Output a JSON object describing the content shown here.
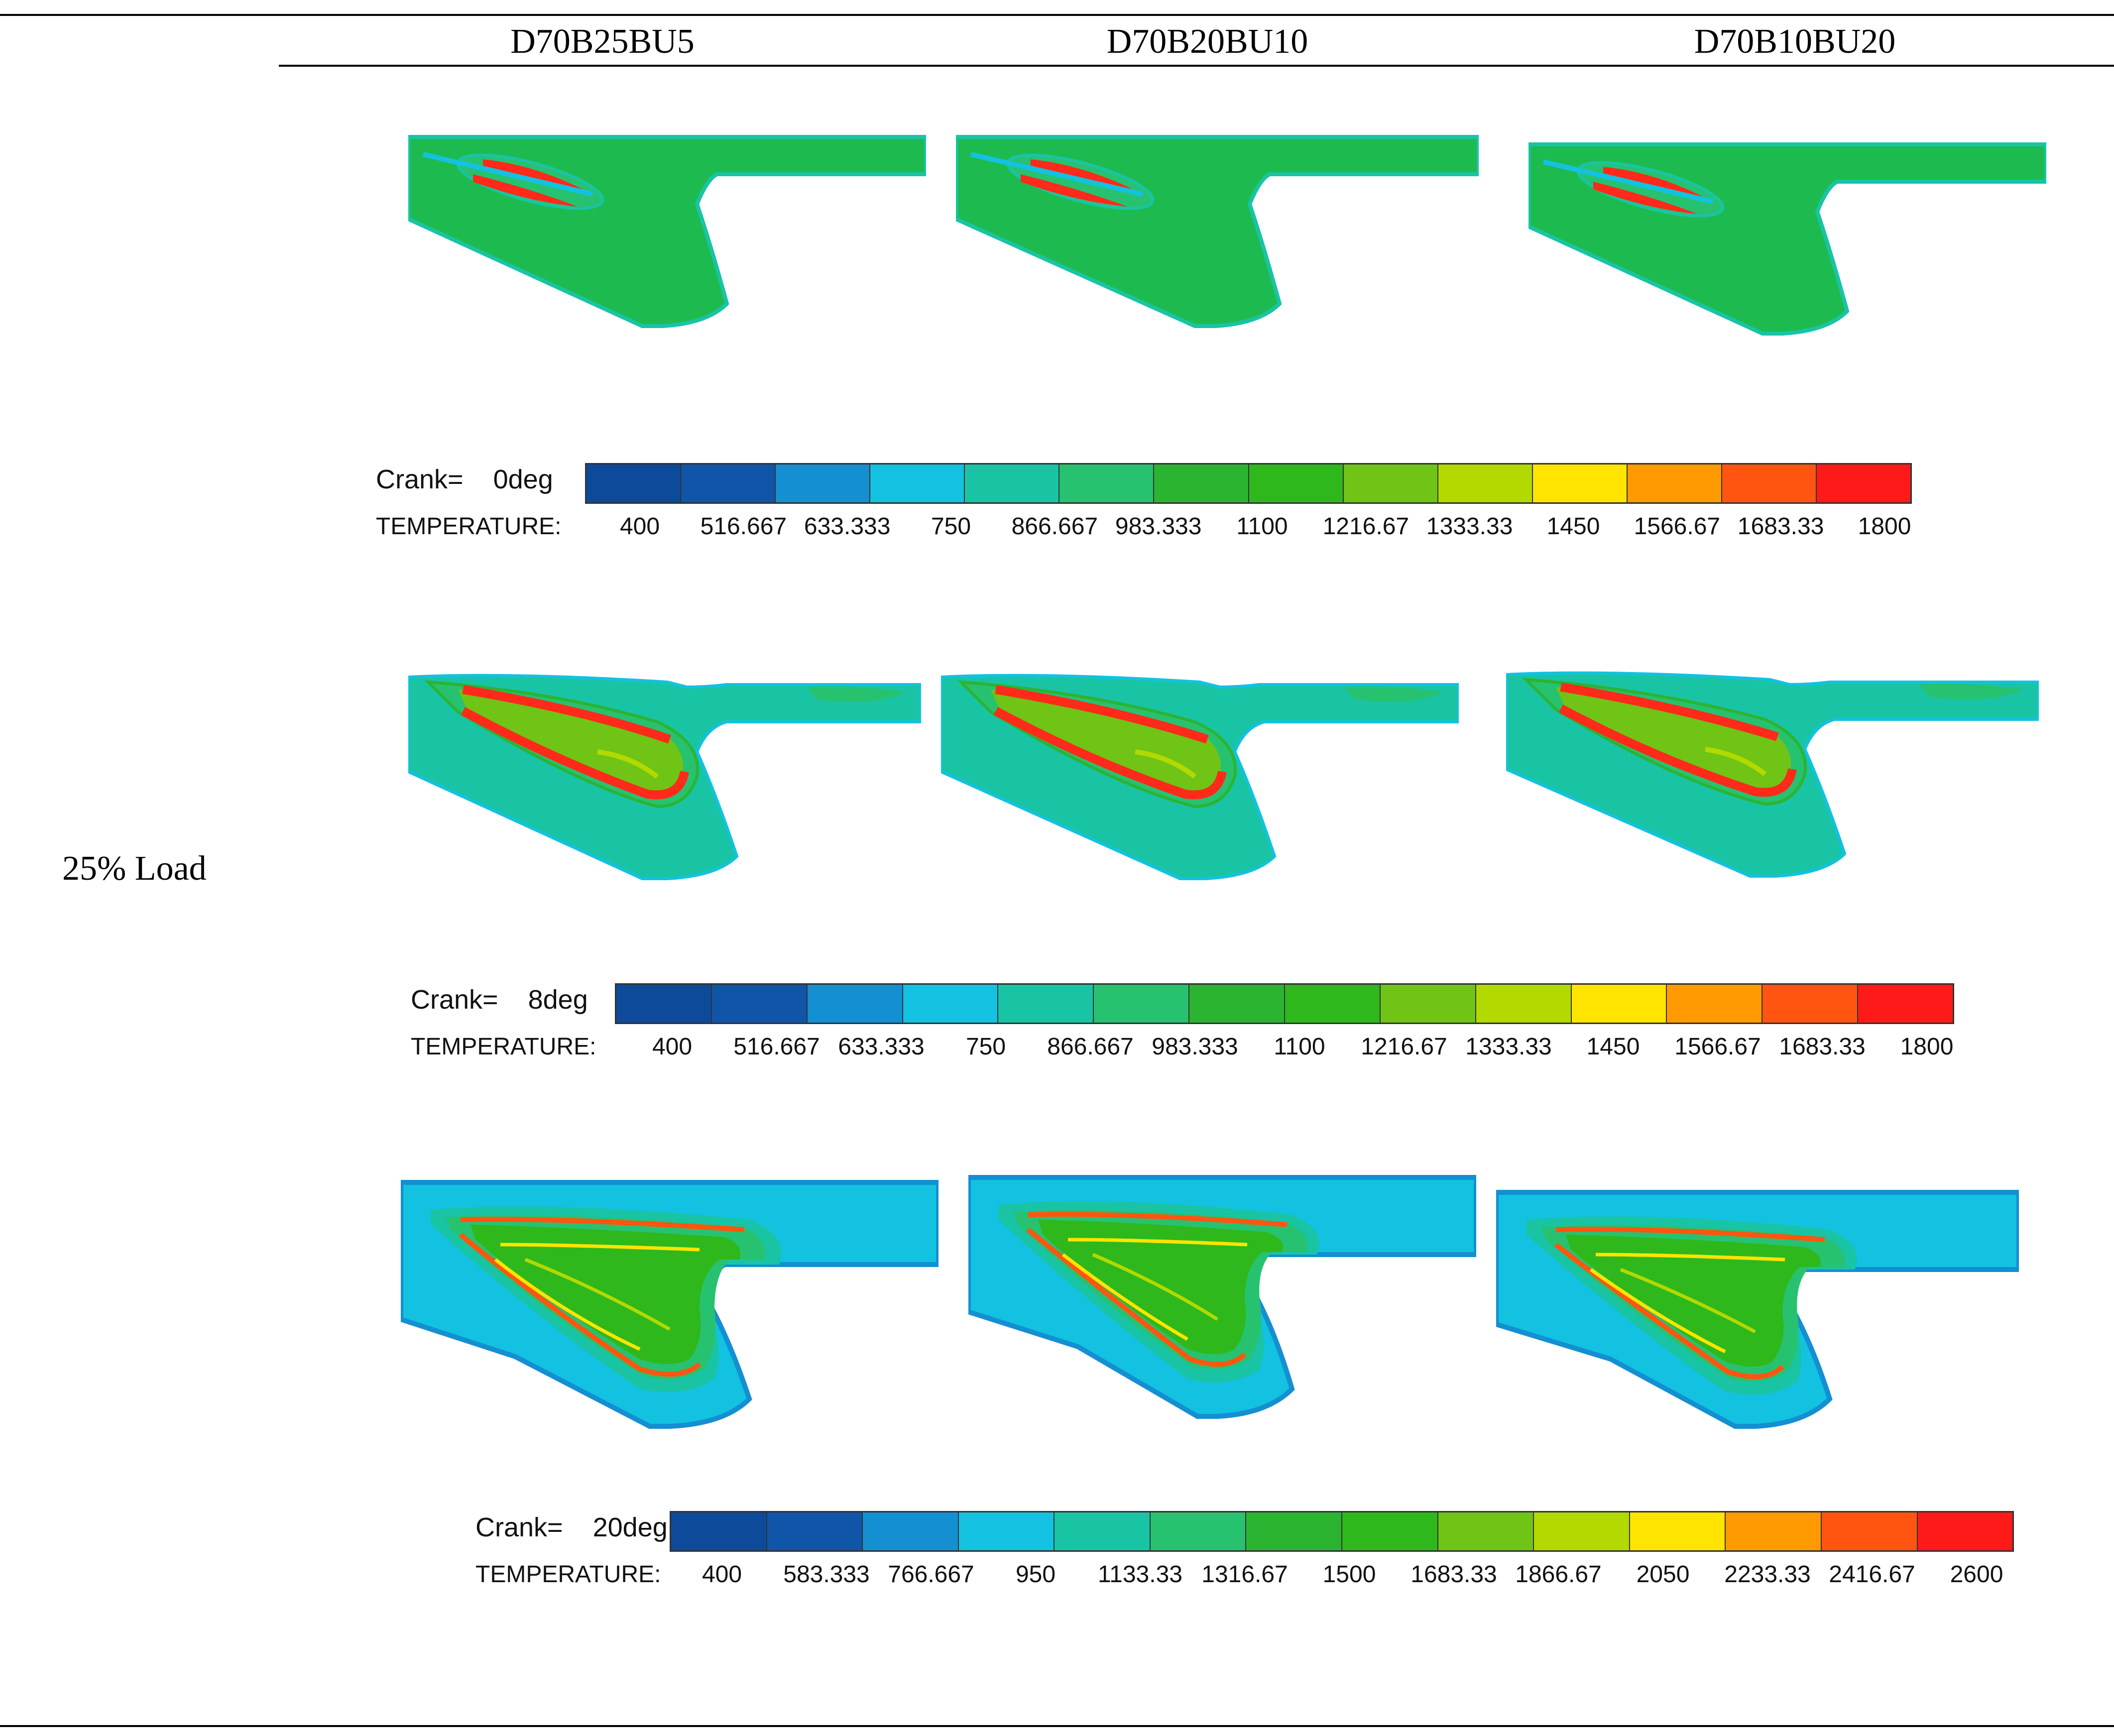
{
  "table": {
    "columns": [
      "D70B25BU5",
      "D70B20BU10",
      "D70B10BU20"
    ],
    "row_label": "25% Load"
  },
  "legend_colors": [
    "#0d4a9a",
    "#1055a8",
    "#138fd2",
    "#12c2e0",
    "#19c4a5",
    "#27c270",
    "#2bb432",
    "#2eb81c",
    "#6fc415",
    "#b2d900",
    "#ffe400",
    "#ff9a00",
    "#ff5510",
    "#ff1a1a"
  ],
  "panels": [
    {
      "crank_label": "Crank=",
      "crank_value": "0deg",
      "quantity": "TEMPERATURE:",
      "ticks": [
        "400",
        "516.667",
        "633.333",
        "750",
        "866.667",
        "983.333",
        "1100",
        "1216.67",
        "1333.33",
        "1450",
        "1566.67",
        "1683.33",
        "1800"
      ]
    },
    {
      "crank_label": "Crank=",
      "crank_value": "8deg",
      "quantity": "TEMPERATURE:",
      "ticks": [
        "400",
        "516.667",
        "633.333",
        "750",
        "866.667",
        "983.333",
        "1100",
        "1216.67",
        "1333.33",
        "1450",
        "1566.67",
        "1683.33",
        "1800"
      ]
    },
    {
      "crank_label": "Crank=",
      "crank_value": "20deg",
      "quantity": "TEMPERATURE:",
      "ticks": [
        "400",
        "583.333",
        "766.667",
        "950",
        "1133.33",
        "1316.67",
        "1500",
        "1683.33",
        "1866.67",
        "2050",
        "2233.33",
        "2416.67",
        "2600"
      ]
    }
  ]
}
